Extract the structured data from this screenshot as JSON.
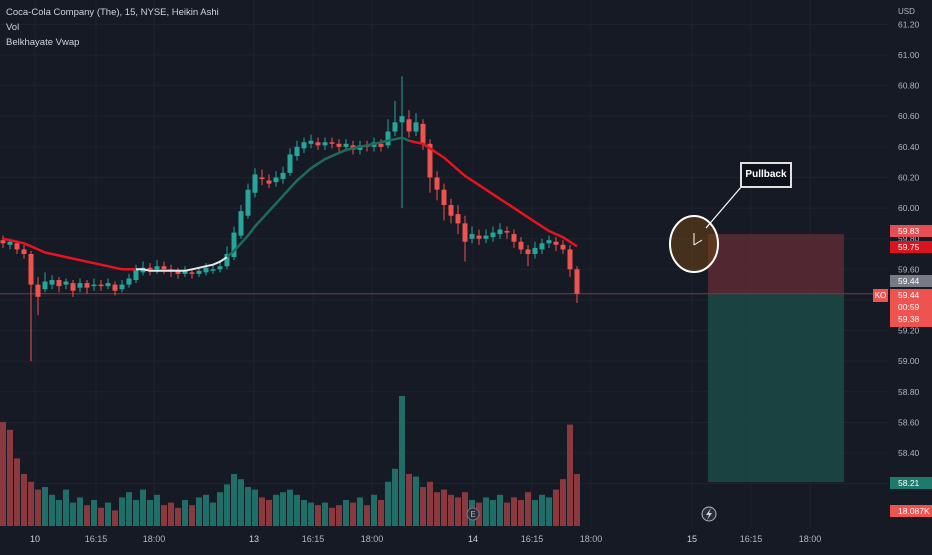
{
  "legend": {
    "title": "Coca-Cola Company (The), 15, NYSE, Heikin Ashi",
    "vol": "Vol",
    "indicator": "Belkhayate Vwap"
  },
  "currency": "USD",
  "annotation": "Pullback",
  "symbol_tag": "KO",
  "price_badges": {
    "stop": "59.83",
    "vwap": "59.75",
    "mark": "59.44",
    "last": "59.44",
    "countdown": "00:59",
    "low": "59.38",
    "target": "58.21",
    "volume": "18.087K"
  },
  "colors": {
    "background": "#161a25",
    "bull": "#26a69a",
    "bear": "#ef5350",
    "vwap_upper": "#e6141e",
    "vwap_lower": "#1e6b5a",
    "stop_zone": "#5c2b35",
    "target_zone": "#1b4a45",
    "text": "#b2b5be"
  },
  "chart_data": {
    "type": "candlestick",
    "title": "Coca-Cola Company (The), 15, NYSE, Heikin Ashi",
    "y_axis_ticks": [
      "61.20",
      "61.00",
      "60.80",
      "60.60",
      "60.40",
      "60.20",
      "60.00",
      "59.80",
      "59.60",
      "59.40",
      "59.20",
      "59.00",
      "58.80",
      "58.60",
      "58.40",
      "58.20"
    ],
    "x_axis_ticks": [
      "10",
      "16:15",
      "18:00",
      "13",
      "16:15",
      "18:00",
      "14",
      "16:15",
      "18:00",
      "15",
      "16:15",
      "18:00"
    ],
    "ylim": [
      58.0,
      61.35
    ],
    "candles": [
      [
        59.79,
        59.77,
        59.82,
        59.74
      ],
      [
        59.76,
        59.78,
        59.8,
        59.73
      ],
      [
        59.77,
        59.73,
        59.79,
        59.7
      ],
      [
        59.73,
        59.7,
        59.76,
        59.67
      ],
      [
        59.7,
        59.5,
        59.72,
        59.0
      ],
      [
        59.5,
        59.42,
        59.55,
        59.3
      ],
      [
        59.47,
        59.52,
        59.58,
        59.45
      ],
      [
        59.5,
        59.53,
        59.56,
        59.47
      ],
      [
        59.53,
        59.49,
        59.55,
        59.45
      ],
      [
        59.5,
        59.52,
        59.54,
        59.47
      ],
      [
        59.51,
        59.46,
        59.53,
        59.42
      ],
      [
        59.48,
        59.51,
        59.54,
        59.45
      ],
      [
        59.51,
        59.48,
        59.53,
        59.44
      ],
      [
        59.49,
        59.5,
        59.54,
        59.46
      ],
      [
        59.5,
        59.49,
        59.53,
        59.46
      ],
      [
        59.49,
        59.51,
        59.54,
        59.47
      ],
      [
        59.5,
        59.46,
        59.52,
        59.43
      ],
      [
        59.47,
        59.5,
        59.53,
        59.45
      ],
      [
        59.5,
        59.54,
        59.57,
        59.48
      ],
      [
        59.53,
        59.6,
        59.63,
        59.51
      ],
      [
        59.58,
        59.61,
        59.65,
        59.56
      ],
      [
        59.61,
        59.6,
        59.64,
        59.56
      ],
      [
        59.6,
        59.62,
        59.66,
        59.57
      ],
      [
        59.62,
        59.6,
        59.65,
        59.57
      ],
      [
        59.6,
        59.59,
        59.63,
        59.55
      ],
      [
        59.59,
        59.57,
        59.61,
        59.54
      ],
      [
        59.57,
        59.59,
        59.62,
        59.55
      ],
      [
        59.58,
        59.57,
        59.6,
        59.54
      ],
      [
        59.57,
        59.59,
        59.61,
        59.55
      ],
      [
        59.58,
        59.61,
        59.64,
        59.56
      ],
      [
        59.6,
        59.6,
        59.63,
        59.57
      ],
      [
        59.6,
        59.62,
        59.66,
        59.58
      ],
      [
        59.62,
        59.7,
        59.75,
        59.6
      ],
      [
        59.68,
        59.84,
        59.88,
        59.66
      ],
      [
        59.82,
        59.98,
        60.02,
        59.8
      ],
      [
        59.95,
        60.12,
        60.16,
        59.93
      ],
      [
        60.1,
        60.22,
        60.26,
        60.07
      ],
      [
        60.2,
        60.19,
        60.25,
        60.15
      ],
      [
        60.18,
        60.16,
        60.22,
        60.13
      ],
      [
        60.17,
        60.2,
        60.24,
        60.14
      ],
      [
        60.19,
        60.23,
        60.27,
        60.16
      ],
      [
        60.23,
        60.35,
        60.39,
        60.21
      ],
      [
        60.34,
        60.4,
        60.44,
        60.31
      ],
      [
        60.39,
        60.43,
        60.46,
        60.36
      ],
      [
        60.42,
        60.44,
        60.48,
        60.39
      ],
      [
        60.43,
        60.41,
        60.46,
        60.38
      ],
      [
        60.41,
        60.43,
        60.46,
        60.38
      ],
      [
        60.43,
        60.42,
        60.46,
        60.39
      ],
      [
        60.42,
        60.4,
        60.45,
        60.37
      ],
      [
        60.4,
        60.42,
        60.45,
        60.37
      ],
      [
        60.41,
        60.38,
        60.44,
        60.35
      ],
      [
        60.38,
        60.41,
        60.44,
        60.35
      ],
      [
        60.41,
        60.4,
        60.44,
        60.37
      ],
      [
        60.4,
        60.43,
        60.46,
        60.37
      ],
      [
        60.42,
        60.4,
        60.45,
        60.37
      ],
      [
        60.41,
        60.5,
        60.58,
        60.39
      ],
      [
        60.5,
        60.56,
        60.7,
        60.47
      ],
      [
        60.56,
        60.6,
        60.86,
        60.0
      ],
      [
        60.58,
        60.5,
        60.64,
        60.46
      ],
      [
        60.5,
        60.56,
        60.62,
        60.47
      ],
      [
        60.55,
        60.42,
        60.58,
        60.38
      ],
      [
        60.42,
        60.2,
        60.45,
        60.1
      ],
      [
        60.2,
        60.12,
        60.24,
        60.05
      ],
      [
        60.12,
        60.02,
        60.16,
        59.92
      ],
      [
        60.02,
        59.95,
        60.06,
        59.9
      ],
      [
        59.96,
        59.9,
        60.02,
        59.83
      ],
      [
        59.9,
        59.78,
        59.95,
        59.65
      ],
      [
        59.8,
        59.83,
        59.88,
        59.77
      ],
      [
        59.82,
        59.8,
        59.86,
        59.76
      ],
      [
        59.8,
        59.82,
        59.86,
        59.77
      ],
      [
        59.81,
        59.84,
        59.88,
        59.78
      ],
      [
        59.83,
        59.86,
        59.9,
        59.8
      ],
      [
        59.85,
        59.84,
        59.88,
        59.8
      ],
      [
        59.83,
        59.78,
        59.86,
        59.74
      ],
      [
        59.78,
        59.73,
        59.81,
        59.7
      ],
      [
        59.73,
        59.7,
        59.76,
        59.62
      ],
      [
        59.7,
        59.74,
        59.78,
        59.67
      ],
      [
        59.73,
        59.77,
        59.8,
        59.7
      ],
      [
        59.77,
        59.79,
        59.82,
        59.74
      ],
      [
        59.78,
        59.76,
        59.81,
        59.72
      ],
      [
        59.76,
        59.73,
        59.79,
        59.7
      ],
      [
        59.73,
        59.6,
        59.76,
        59.55
      ],
      [
        59.6,
        59.44,
        59.62,
        59.38
      ]
    ],
    "volume": [
      [
        0.8,
        "bear"
      ],
      [
        0.74,
        "bear"
      ],
      [
        0.52,
        "bear"
      ],
      [
        0.4,
        "bear"
      ],
      [
        0.34,
        "bear"
      ],
      [
        0.28,
        "bear"
      ],
      [
        0.3,
        "bull"
      ],
      [
        0.24,
        "bull"
      ],
      [
        0.2,
        "bull"
      ],
      [
        0.28,
        "bull"
      ],
      [
        0.18,
        "bull"
      ],
      [
        0.22,
        "bull"
      ],
      [
        0.16,
        "bear"
      ],
      [
        0.2,
        "bull"
      ],
      [
        0.14,
        "bear"
      ],
      [
        0.18,
        "bull"
      ],
      [
        0.12,
        "bear"
      ],
      [
        0.22,
        "bull"
      ],
      [
        0.26,
        "bull"
      ],
      [
        0.2,
        "bull"
      ],
      [
        0.28,
        "bull"
      ],
      [
        0.2,
        "bull"
      ],
      [
        0.24,
        "bull"
      ],
      [
        0.16,
        "bear"
      ],
      [
        0.18,
        "bear"
      ],
      [
        0.14,
        "bear"
      ],
      [
        0.2,
        "bull"
      ],
      [
        0.16,
        "bear"
      ],
      [
        0.22,
        "bull"
      ],
      [
        0.24,
        "bull"
      ],
      [
        0.18,
        "bull"
      ],
      [
        0.26,
        "bull"
      ],
      [
        0.32,
        "bull"
      ],
      [
        0.4,
        "bull"
      ],
      [
        0.36,
        "bull"
      ],
      [
        0.3,
        "bull"
      ],
      [
        0.28,
        "bull"
      ],
      [
        0.22,
        "bear"
      ],
      [
        0.2,
        "bear"
      ],
      [
        0.24,
        "bull"
      ],
      [
        0.26,
        "bull"
      ],
      [
        0.28,
        "bull"
      ],
      [
        0.24,
        "bull"
      ],
      [
        0.2,
        "bull"
      ],
      [
        0.18,
        "bull"
      ],
      [
        0.16,
        "bear"
      ],
      [
        0.18,
        "bull"
      ],
      [
        0.14,
        "bear"
      ],
      [
        0.16,
        "bear"
      ],
      [
        0.2,
        "bull"
      ],
      [
        0.18,
        "bear"
      ],
      [
        0.22,
        "bull"
      ],
      [
        0.16,
        "bear"
      ],
      [
        0.24,
        "bull"
      ],
      [
        0.2,
        "bear"
      ],
      [
        0.34,
        "bull"
      ],
      [
        0.44,
        "bull"
      ],
      [
        1.0,
        "bull"
      ],
      [
        0.4,
        "bear"
      ],
      [
        0.38,
        "bull"
      ],
      [
        0.3,
        "bear"
      ],
      [
        0.34,
        "bear"
      ],
      [
        0.26,
        "bear"
      ],
      [
        0.28,
        "bear"
      ],
      [
        0.24,
        "bear"
      ],
      [
        0.22,
        "bear"
      ],
      [
        0.26,
        "bear"
      ],
      [
        0.2,
        "bull"
      ],
      [
        0.18,
        "bear"
      ],
      [
        0.22,
        "bull"
      ],
      [
        0.2,
        "bull"
      ],
      [
        0.24,
        "bull"
      ],
      [
        0.18,
        "bear"
      ],
      [
        0.22,
        "bear"
      ],
      [
        0.2,
        "bear"
      ],
      [
        0.26,
        "bear"
      ],
      [
        0.2,
        "bull"
      ],
      [
        0.24,
        "bull"
      ],
      [
        0.22,
        "bull"
      ],
      [
        0.28,
        "bear"
      ],
      [
        0.36,
        "bear"
      ],
      [
        0.78,
        "bear"
      ],
      [
        0.4,
        "bear"
      ]
    ],
    "vwap": [
      59.8,
      59.79,
      59.78,
      59.77,
      59.75,
      59.73,
      59.71,
      59.7,
      59.69,
      59.68,
      59.67,
      59.66,
      59.65,
      59.64,
      59.63,
      59.62,
      59.61,
      59.6,
      59.6,
      59.6,
      59.6,
      59.59,
      59.59,
      59.59,
      59.59,
      59.59,
      59.59,
      59.6,
      59.61,
      59.62,
      59.63,
      59.65,
      59.68,
      59.72,
      59.77,
      59.82,
      59.88,
      59.93,
      59.98,
      60.03,
      60.08,
      60.13,
      60.18,
      60.22,
      60.26,
      60.29,
      60.32,
      60.34,
      60.36,
      60.38,
      60.39,
      60.4,
      60.41,
      60.42,
      60.43,
      60.44,
      60.45,
      60.46,
      60.44,
      60.43,
      60.42,
      60.39,
      60.36,
      60.33,
      60.29,
      60.25,
      60.21,
      60.18,
      60.15,
      60.12,
      60.09,
      60.06,
      60.03,
      60.0,
      59.97,
      59.94,
      59.91,
      59.88,
      59.85,
      59.83,
      59.81,
      59.78,
      59.75
    ]
  }
}
